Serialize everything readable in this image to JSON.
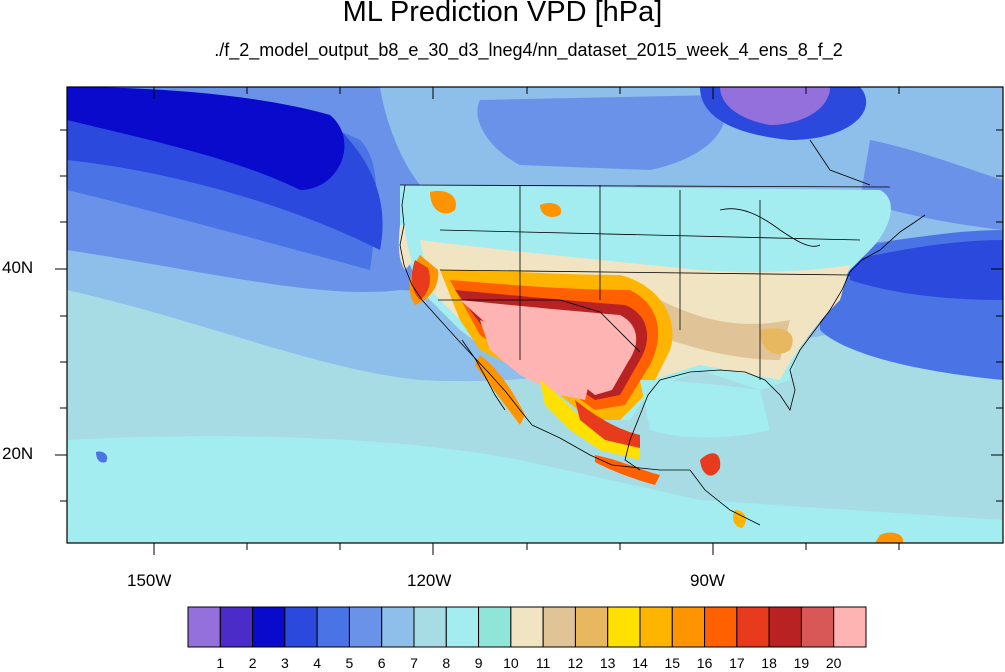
{
  "title": "ML Prediction VPD [hPa]",
  "subtitle": "./f_2_model_output_b8_e_30_d3_lneg4/nn_dataset_2015_week_4_ens_8_f_2",
  "axes": {
    "lon_ticks": [
      "150W",
      "120W",
      "90W"
    ],
    "lat_ticks": [
      "40N",
      "20N"
    ]
  },
  "colorbar": {
    "labels": [
      "1",
      "2",
      "3",
      "4",
      "5",
      "6",
      "7",
      "8",
      "9",
      "10",
      "11",
      "12",
      "13",
      "14",
      "15",
      "16",
      "17",
      "18",
      "19",
      "20"
    ],
    "colors": [
      "#9370DB",
      "#4B2CC8",
      "#0A0ACC",
      "#2C49DE",
      "#4A74E6",
      "#6A92E8",
      "#8EBEEA",
      "#A8DCE4",
      "#A3ECF0",
      "#8FE6D8",
      "#F0E4C2",
      "#E0C498",
      "#E8B860",
      "#FFE000",
      "#FFB400",
      "#FF9400",
      "#FF6000",
      "#E83A1C",
      "#B82222",
      "#D85858",
      "#FFB4B4"
    ]
  },
  "chart_data": {
    "type": "heatmap",
    "title": "ML Prediction VPD [hPa]",
    "subtitle": "./f_2_model_output_b8_e_30_d3_lneg4/nn_dataset_2015_week_4_ens_8_f_2",
    "lon_range": [
      -160,
      -63
    ],
    "lat_range": [
      10,
      60
    ],
    "x_ticks": [
      "150W",
      "120W",
      "90W"
    ],
    "y_ticks": [
      "40N",
      "20N"
    ],
    "colorbar_levels": [
      1,
      2,
      3,
      4,
      5,
      6,
      7,
      8,
      9,
      10,
      11,
      12,
      13,
      14,
      15,
      16,
      17,
      18,
      19,
      20
    ]
  }
}
